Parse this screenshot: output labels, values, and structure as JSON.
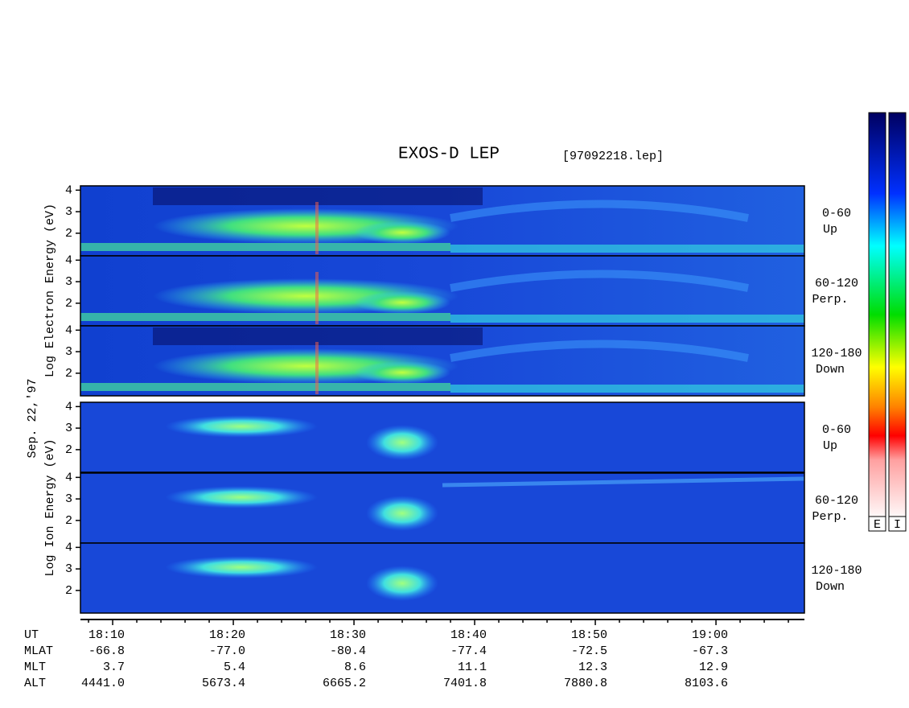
{
  "chart_data": {
    "type": "spectrogram",
    "title": "EXOS-D LEP",
    "file": "[97092218.lep]",
    "date_label": "Sep. 22,'97",
    "groups": [
      {
        "label": "Log  Electron  Energy (eV)"
      },
      {
        "label": "Log  Ion  Energy (eV)"
      }
    ],
    "panels": [
      {
        "group": 0,
        "angle": "0-60",
        "direction": "Up"
      },
      {
        "group": 0,
        "angle": "60-120",
        "direction": "Perp."
      },
      {
        "group": 0,
        "angle": "120-180",
        "direction": "Down"
      },
      {
        "group": 1,
        "angle": "0-60",
        "direction": "Up"
      },
      {
        "group": 1,
        "angle": "60-120",
        "direction": "Perp."
      },
      {
        "group": 1,
        "angle": "120-180",
        "direction": "Down"
      }
    ],
    "ylim": [
      0.95,
      4.2
    ],
    "yticks": [
      2,
      3,
      4
    ],
    "xlim": [
      1087.33,
      1147.33
    ],
    "xticks": [
      {
        "value": 1090,
        "label": "18:10"
      },
      {
        "value": 1100,
        "label": "18:20"
      },
      {
        "value": 1110,
        "label": "18:30"
      },
      {
        "value": 1120,
        "label": "18:40"
      },
      {
        "value": 1130,
        "label": "18:50"
      },
      {
        "value": 1140,
        "label": "19:00"
      }
    ],
    "xticks_minor": [
      1088,
      1092,
      1094,
      1096,
      1098,
      1102,
      1104,
      1106,
      1108,
      1112,
      1114,
      1116,
      1118,
      1122,
      1124,
      1126,
      1128,
      1132,
      1134,
      1136,
      1138,
      1142,
      1144,
      1146
    ],
    "orbit_rows": [
      {
        "name": "UT"
      },
      {
        "name": "MLAT",
        "values": [
          "-66.8",
          "-77.0",
          "-80.4",
          "-77.4",
          "-72.5",
          "-67.3"
        ]
      },
      {
        "name": "MLT",
        "values": [
          "3.7",
          "5.4",
          "8.6",
          "11.1",
          "12.3",
          "12.9"
        ]
      },
      {
        "name": "ALT",
        "values": [
          "4441.0",
          "5673.4",
          "6665.2",
          "7401.8",
          "7880.8",
          "8103.6"
        ]
      }
    ],
    "colorbars": [
      "E",
      "I"
    ]
  }
}
